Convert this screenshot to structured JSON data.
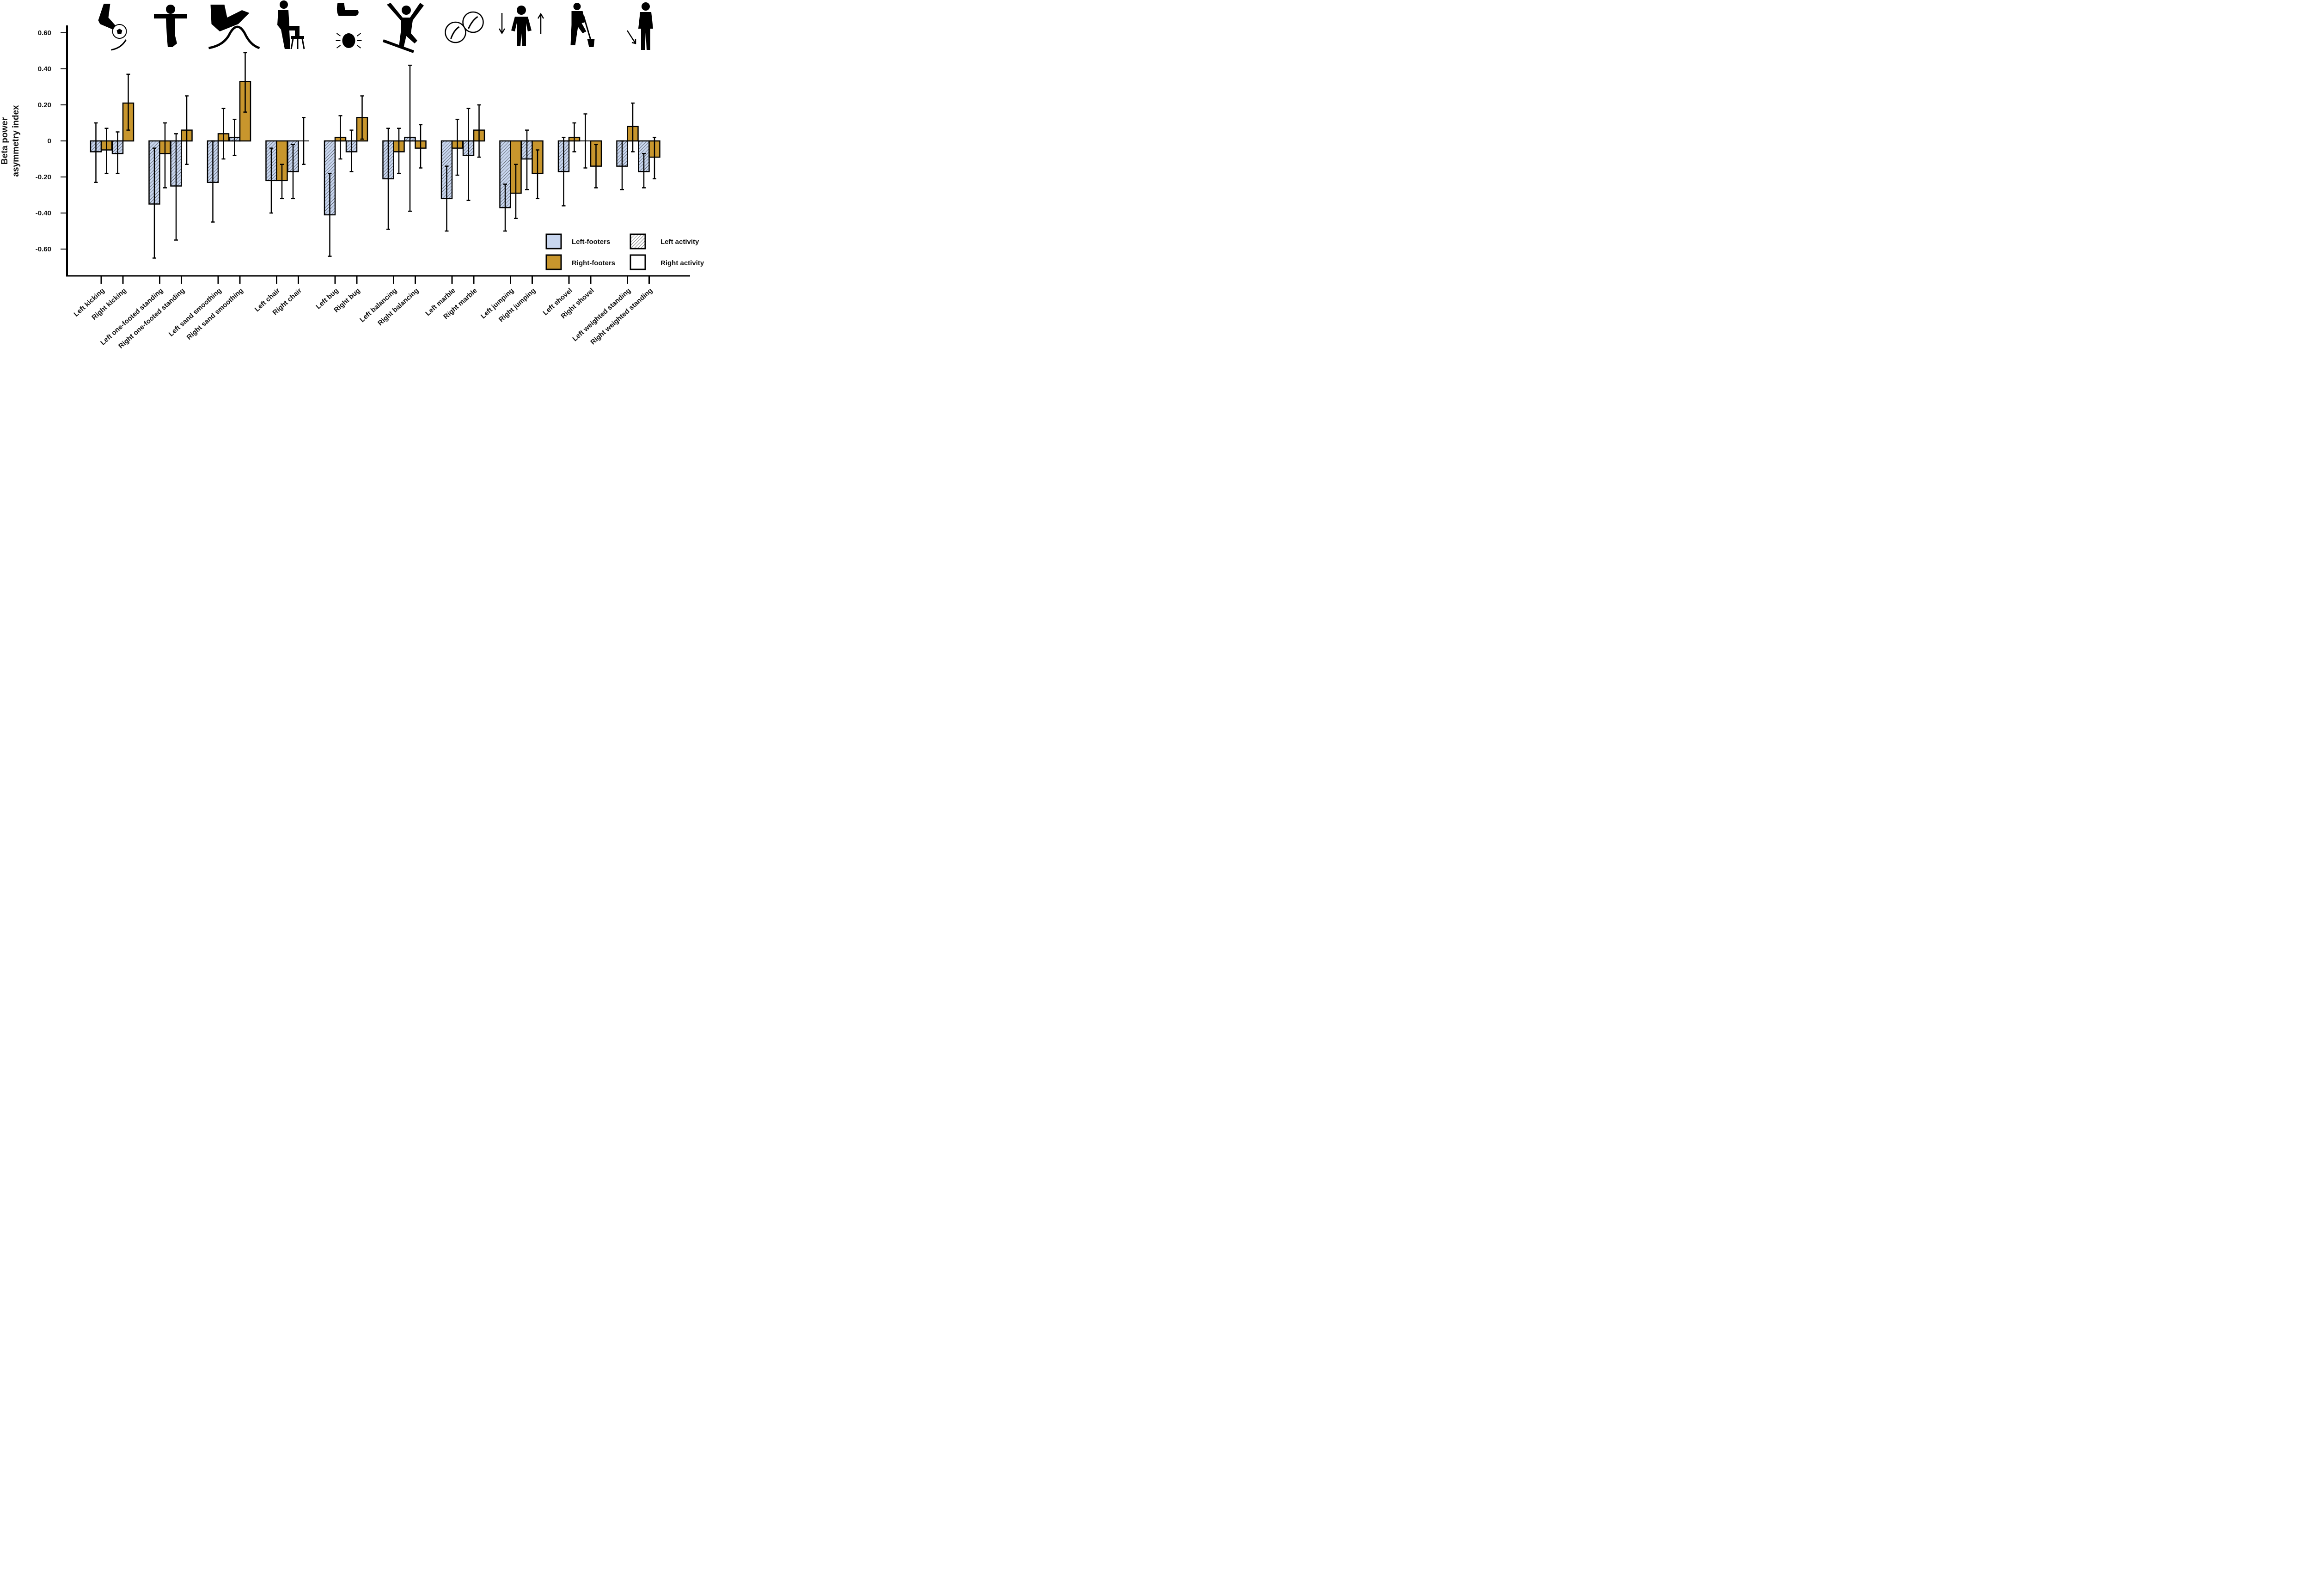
{
  "chart_data": {
    "type": "bar",
    "title": "",
    "xlabel": "",
    "ylabel": [
      "Beta power",
      "asymmetry index"
    ],
    "ylim": [
      -0.7,
      0.6
    ],
    "yticks": [
      0.6,
      0.4,
      0.2,
      0,
      -0.2,
      -0.4,
      -0.6
    ],
    "ytick_labels": [
      "0.60",
      "0.40",
      "0.20",
      "0",
      "-0.20",
      "-0.40",
      "-0.60"
    ],
    "grid": false,
    "legend_position": "bottom-right",
    "legend": [
      {
        "label": "Left-footers",
        "kind": "fill",
        "color": "#c8d6ef"
      },
      {
        "label": "Left activity",
        "kind": "hatch"
      },
      {
        "label": "Right-footers",
        "kind": "fill",
        "color": "#c8962d"
      },
      {
        "label": "Right activity",
        "kind": "plain"
      }
    ],
    "colors": {
      "left_footers": "#c8d6ef",
      "right_footers": "#c8962d",
      "outline": "#000000"
    },
    "activities": [
      "kicking",
      "one-footed standing",
      "sand smoothing",
      "chair",
      "bug",
      "balancing",
      "marble",
      "jumping",
      "shovel",
      "weighted standing"
    ],
    "activity_icons": [
      "kicking-ball-icon",
      "one-footed-standing-icon",
      "sand-smoothing-foot-icon",
      "chair-step-icon",
      "foot-bug-icon",
      "balancing-icon",
      "marbles-icon",
      "jumping-icon",
      "shovel-icon",
      "weighted-standing-icon"
    ],
    "categories": [
      "Left kicking",
      "Right kicking",
      "Left one-footed standing",
      "Right one-footed standing",
      "Left sand smoothing",
      "Right sand smoothing",
      "Left chair",
      "Right chair",
      "Left bug",
      "Right bug",
      "Left balancing",
      "Right balancing",
      "Left marble",
      "Right marble",
      "Left jumping",
      "Right jumping",
      "Left shovel",
      "Right shovel",
      "Left weighted standing",
      "Right weighted standing"
    ],
    "series": [
      {
        "name": "Left-footers",
        "values": [
          -0.06,
          -0.07,
          -0.35,
          -0.25,
          -0.23,
          0.02,
          -0.22,
          -0.17,
          -0.41,
          -0.06,
          -0.21,
          0.02,
          -0.32,
          -0.08,
          -0.37,
          -0.1,
          -0.17,
          0.0,
          -0.14,
          -0.17
        ],
        "err_low": [
          -0.23,
          -0.18,
          -0.65,
          -0.55,
          -0.45,
          -0.08,
          -0.4,
          -0.32,
          -0.64,
          -0.17,
          -0.49,
          -0.39,
          -0.5,
          -0.33,
          -0.5,
          -0.27,
          -0.36,
          -0.15,
          -0.27,
          -0.26
        ],
        "err_high": [
          0.1,
          0.05,
          -0.04,
          0.04,
          0.0,
          0.12,
          -0.04,
          -0.02,
          -0.18,
          0.06,
          0.07,
          0.42,
          -0.14,
          0.18,
          -0.24,
          0.06,
          0.02,
          0.15,
          0.0,
          -0.07
        ]
      },
      {
        "name": "Right-footers",
        "values": [
          -0.05,
          0.21,
          -0.07,
          0.06,
          0.04,
          0.33,
          -0.22,
          0.0,
          0.02,
          0.13,
          -0.06,
          -0.04,
          -0.04,
          0.06,
          -0.29,
          -0.18,
          0.02,
          -0.14,
          0.08,
          -0.09
        ],
        "err_low": [
          -0.18,
          0.06,
          -0.26,
          -0.13,
          -0.1,
          0.16,
          -0.32,
          -0.13,
          -0.1,
          0.01,
          -0.18,
          -0.15,
          -0.19,
          -0.09,
          -0.43,
          -0.32,
          -0.06,
          -0.26,
          -0.06,
          -0.21
        ],
        "err_high": [
          0.07,
          0.37,
          0.1,
          0.25,
          0.18,
          0.49,
          -0.13,
          0.13,
          0.14,
          0.25,
          0.07,
          0.09,
          0.12,
          0.2,
          -0.13,
          -0.05,
          0.1,
          -0.02,
          0.21,
          0.02
        ]
      }
    ]
  }
}
